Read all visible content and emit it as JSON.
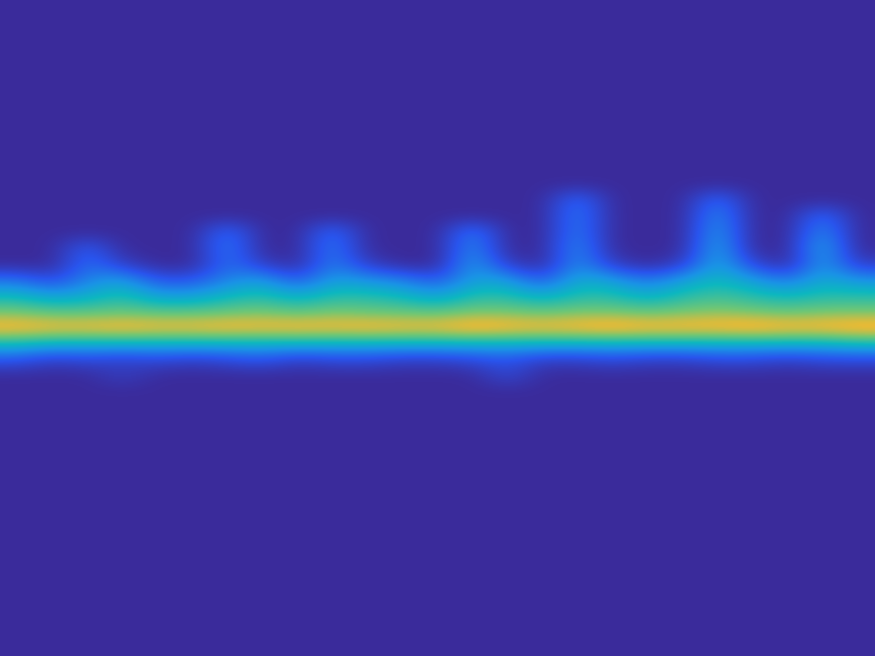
{
  "chart_data": {
    "type": "heatmap",
    "tick_labels": false,
    "color_range": [
      0,
      1
    ],
    "cells": [
      [
        0,
        0,
        0,
        0,
        0,
        0,
        0,
        0,
        0,
        0,
        0,
        0,
        0,
        0,
        0,
        0,
        0,
        0,
        0,
        0,
        0,
        0,
        0,
        0,
        0
      ],
      [
        0,
        0,
        0,
        0,
        0,
        0,
        0,
        0,
        0,
        0,
        0,
        0,
        0,
        0,
        0,
        0,
        0,
        0,
        0,
        0,
        0,
        0,
        0,
        0,
        0
      ],
      [
        0,
        0,
        0,
        0,
        0,
        0,
        0,
        0,
        0,
        0,
        0,
        0,
        0,
        0,
        0,
        0,
        0,
        0,
        0,
        0,
        0,
        0,
        0,
        0,
        0
      ],
      [
        0,
        0,
        0,
        0,
        0,
        0,
        0,
        0,
        0,
        0,
        0,
        0,
        0,
        0,
        0,
        0,
        0,
        0,
        0,
        0,
        0,
        0,
        0,
        0,
        0
      ],
      [
        0,
        0,
        0,
        0,
        0,
        0,
        0,
        0,
        0,
        0,
        0,
        0,
        0,
        0,
        0,
        0,
        0,
        0,
        0,
        0,
        0,
        0,
        0,
        0,
        0
      ],
      [
        0,
        0,
        0,
        0,
        0,
        0,
        0,
        0,
        0,
        0,
        0,
        0,
        0,
        0,
        0,
        0,
        0,
        0,
        0,
        0,
        0,
        0,
        0,
        0,
        0
      ],
      [
        0,
        0,
        0,
        0,
        0,
        0,
        0,
        0,
        0,
        0,
        0,
        0,
        0,
        0,
        0,
        0,
        0,
        0,
        0,
        0,
        0,
        0,
        0,
        0,
        0
      ],
      [
        0,
        0,
        0,
        0,
        0,
        0,
        0,
        0,
        0,
        0,
        0,
        0,
        0,
        0,
        0,
        0,
        0,
        0,
        0,
        0,
        0,
        0,
        0,
        0,
        0
      ],
      [
        0,
        0,
        0,
        0,
        0,
        0,
        0,
        0,
        0,
        0,
        0,
        0,
        0,
        0,
        0,
        0,
        0,
        0,
        0,
        0,
        0,
        0,
        0,
        0,
        0
      ],
      [
        0,
        0,
        0,
        0,
        0,
        0,
        0,
        0,
        0,
        0,
        0,
        0,
        0,
        0,
        0,
        0,
        0,
        0,
        0,
        0,
        0,
        0,
        0,
        0,
        0
      ],
      [
        0,
        0,
        0,
        0,
        0,
        0,
        0,
        0,
        0,
        0,
        0,
        0,
        0,
        0,
        0,
        0,
        0,
        0,
        0,
        0,
        0,
        0,
        0,
        0,
        0
      ],
      [
        0,
        0,
        0,
        0,
        0,
        0,
        0,
        0,
        0,
        0,
        0,
        0,
        0,
        0,
        0,
        0,
        0,
        0,
        0,
        0,
        0,
        0,
        0,
        0,
        0
      ],
      [
        0,
        0,
        0,
        0,
        0,
        0,
        0,
        0,
        0,
        0,
        0,
        0,
        0,
        0,
        0,
        0,
        0.3,
        0,
        0,
        0,
        0.3,
        0,
        0,
        0,
        0
      ],
      [
        0,
        0,
        0,
        0,
        0,
        0,
        0,
        0,
        0,
        0,
        0,
        0,
        0,
        0,
        0,
        0,
        0.35,
        0,
        0,
        0,
        0.4,
        0,
        0,
        0.3,
        0
      ],
      [
        0,
        0,
        0,
        0,
        0,
        0,
        0.3,
        0,
        0,
        0.3,
        0,
        0,
        0,
        0.35,
        0,
        0,
        0.35,
        0,
        0,
        0,
        0.45,
        0,
        0,
        0.4,
        0
      ],
      [
        0,
        0,
        0.25,
        0,
        0,
        0,
        0.35,
        0,
        0,
        0.35,
        0,
        0,
        0,
        0.4,
        0,
        0,
        0.4,
        0,
        0,
        0,
        0.5,
        0,
        0,
        0.5,
        0
      ],
      [
        0,
        0,
        0.3,
        0.1,
        0,
        0,
        0.3,
        0.1,
        0,
        0.35,
        0.1,
        0,
        0,
        0.45,
        0.1,
        0,
        0.4,
        0.1,
        0,
        0.1,
        0.5,
        0.15,
        0,
        0.45,
        0.1
      ],
      [
        0.3,
        0.15,
        0.35,
        0.45,
        0.2,
        0.2,
        0.35,
        0.45,
        0.2,
        0.45,
        0.4,
        0.35,
        0.2,
        0.45,
        0.45,
        0.2,
        0.5,
        0.45,
        0.3,
        0.45,
        0.55,
        0.45,
        0.3,
        0.5,
        0.4
      ],
      [
        0.55,
        0.45,
        0.5,
        0.6,
        0.45,
        0.45,
        0.55,
        0.6,
        0.5,
        0.6,
        0.6,
        0.55,
        0.45,
        0.6,
        0.6,
        0.5,
        0.6,
        0.6,
        0.5,
        0.6,
        0.65,
        0.6,
        0.55,
        0.6,
        0.6
      ],
      [
        0.75,
        0.7,
        0.7,
        0.72,
        0.7,
        0.7,
        0.72,
        0.75,
        0.7,
        0.75,
        0.72,
        0.72,
        0.7,
        0.75,
        0.75,
        0.72,
        0.75,
        0.75,
        0.72,
        0.75,
        0.78,
        0.75,
        0.72,
        0.75,
        0.75
      ],
      [
        0.97,
        0.95,
        0.95,
        0.97,
        0.95,
        0.95,
        0.97,
        0.95,
        0.97,
        0.95,
        0.97,
        0.95,
        0.95,
        1,
        0.97,
        0.95,
        0.97,
        1,
        0.97,
        0.97,
        0.97,
        1,
        0.97,
        0.97,
        1
      ],
      [
        0.55,
        0.5,
        0.5,
        0.5,
        0.5,
        0.5,
        0.5,
        0.5,
        0.5,
        0.5,
        0.5,
        0.5,
        0.5,
        0.5,
        0.5,
        0.5,
        0.5,
        0.5,
        0.5,
        0.5,
        0.5,
        0.5,
        0.5,
        0.5,
        0.55
      ],
      [
        0.2,
        0.1,
        0.15,
        0.1,
        0.15,
        0.1,
        0.15,
        0.2,
        0.1,
        0.15,
        0.15,
        0.1,
        0.1,
        0.15,
        0.2,
        0.1,
        0.1,
        0.15,
        0.1,
        0.1,
        0.15,
        0.15,
        0.1,
        0.15,
        0.15
      ],
      [
        0,
        0,
        0,
        0.1,
        0,
        0,
        0,
        0,
        0,
        0,
        0,
        0,
        0,
        0,
        0.15,
        0,
        0,
        0,
        0,
        0,
        0,
        0,
        0,
        0,
        0
      ],
      [
        0,
        0,
        0,
        0,
        0,
        0,
        0,
        0,
        0,
        0,
        0,
        0,
        0,
        0,
        0,
        0,
        0,
        0,
        0,
        0,
        0,
        0,
        0,
        0,
        0
      ],
      [
        0,
        0,
        0,
        0,
        0,
        0,
        0,
        0,
        0,
        0,
        0,
        0,
        0,
        0,
        0,
        0,
        0,
        0,
        0,
        0,
        0,
        0,
        0,
        0,
        0
      ],
      [
        0,
        0,
        0,
        0,
        0,
        0,
        0,
        0,
        0,
        0,
        0,
        0,
        0,
        0,
        0,
        0,
        0,
        0,
        0,
        0,
        0,
        0,
        0,
        0,
        0
      ],
      [
        0,
        0,
        0,
        0,
        0,
        0,
        0,
        0,
        0,
        0,
        0,
        0,
        0,
        0,
        0,
        0,
        0,
        0,
        0,
        0,
        0,
        0,
        0,
        0,
        0
      ],
      [
        0,
        0,
        0,
        0,
        0,
        0,
        0,
        0,
        0,
        0,
        0,
        0,
        0,
        0,
        0,
        0,
        0,
        0,
        0,
        0,
        0,
        0,
        0,
        0,
        0
      ],
      [
        0,
        0,
        0,
        0,
        0,
        0,
        0,
        0,
        0,
        0,
        0,
        0,
        0,
        0,
        0,
        0,
        0,
        0,
        0,
        0,
        0,
        0,
        0,
        0,
        0
      ],
      [
        0,
        0,
        0,
        0,
        0,
        0,
        0,
        0,
        0,
        0,
        0,
        0,
        0,
        0,
        0,
        0,
        0,
        0,
        0,
        0,
        0,
        0,
        0,
        0,
        0
      ],
      [
        0,
        0,
        0,
        0,
        0,
        0,
        0,
        0,
        0,
        0,
        0,
        0,
        0,
        0,
        0,
        0,
        0,
        0,
        0,
        0,
        0,
        0,
        0,
        0,
        0
      ],
      [
        0,
        0,
        0,
        0,
        0,
        0,
        0,
        0,
        0,
        0,
        0,
        0,
        0,
        0,
        0,
        0,
        0,
        0,
        0,
        0,
        0,
        0,
        0,
        0,
        0
      ],
      [
        0,
        0,
        0,
        0,
        0,
        0,
        0,
        0,
        0,
        0,
        0,
        0,
        0,
        0,
        0,
        0,
        0,
        0,
        0,
        0,
        0,
        0,
        0,
        0,
        0
      ],
      [
        0,
        0,
        0,
        0,
        0,
        0,
        0,
        0,
        0,
        0,
        0,
        0,
        0,
        0,
        0,
        0,
        0,
        0,
        0,
        0,
        0,
        0,
        0,
        0,
        0
      ],
      [
        0,
        0,
        0,
        0,
        0,
        0,
        0,
        0,
        0,
        0,
        0,
        0,
        0,
        0,
        0,
        0,
        0,
        0,
        0,
        0,
        0,
        0,
        0,
        0,
        0
      ],
      [
        0,
        0,
        0,
        0,
        0,
        0,
        0,
        0,
        0,
        0,
        0,
        0,
        0,
        0,
        0,
        0,
        0,
        0,
        0,
        0,
        0,
        0,
        0,
        0,
        0
      ],
      [
        0,
        0,
        0,
        0,
        0,
        0,
        0,
        0,
        0,
        0,
        0,
        0,
        0,
        0,
        0,
        0,
        0,
        0,
        0,
        0,
        0,
        0,
        0,
        0,
        0
      ],
      [
        0,
        0,
        0,
        0,
        0,
        0,
        0,
        0,
        0,
        0,
        0,
        0,
        0,
        0,
        0,
        0,
        0,
        0,
        0,
        0,
        0,
        0,
        0,
        0,
        0
      ],
      [
        0,
        0,
        0,
        0,
        0,
        0,
        0,
        0,
        0,
        0,
        0,
        0,
        0,
        0,
        0,
        0,
        0,
        0,
        0,
        0,
        0,
        0,
        0,
        0,
        0
      ],
      [
        0,
        0,
        0,
        0,
        0,
        0,
        0,
        0,
        0,
        0,
        0,
        0,
        0,
        0,
        0,
        0,
        0,
        0,
        0,
        0,
        0,
        0,
        0,
        0,
        0
      ]
    ]
  }
}
